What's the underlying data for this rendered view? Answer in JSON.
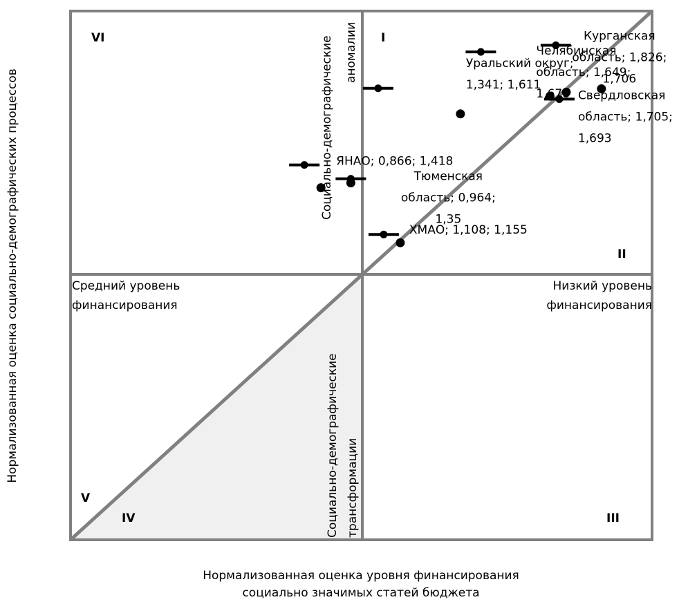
{
  "chart_data": {
    "type": "scatter",
    "xlabel": [
      "Нормализованная оценка уровня финансирования",
      "социально значимых статей бюджета"
    ],
    "ylabel": "Нормализованная оценка  социально-демографических процессов",
    "xlim": [
      0,
      2
    ],
    "ylim": [
      0,
      2
    ],
    "grid": false,
    "points": [
      {
        "label": [
          "ЯНАО; 0,866; 1,418"
        ],
        "x": 0.866,
        "y": 1.418
      },
      {
        "label": [
          "ХМАО; 1,108; 1,155"
        ],
        "x": 1.108,
        "y": 1.155
      },
      {
        "label": [
          "Тюменская",
          "область; 0,964;",
          "1,35"
        ],
        "x": 0.964,
        "y": 1.35
      },
      {
        "label": [
          "Уральский округ;",
          "1,341; 1,611"
        ],
        "x": 1.341,
        "y": 1.611
      },
      {
        "label": [
          "Челябинская",
          "область; 1,649;",
          "1,678"
        ],
        "x": 1.649,
        "y": 1.678
      },
      {
        "label": [
          "Свердловская",
          "область; 1,705;",
          "1,693"
        ],
        "x": 1.705,
        "y": 1.693
      },
      {
        "label": [
          "Курганская",
          "область; 1,826;",
          "1,706"
        ],
        "x": 1.826,
        "y": 1.706
      }
    ],
    "quadrant_labels": [
      "I",
      "II",
      "III",
      "IV",
      "V",
      "VI"
    ],
    "annotations": {
      "anomalies": [
        "Социально-демографические",
        "аномалии"
      ],
      "transformations": [
        "Социально-демографические",
        "трансформации"
      ],
      "mid_funding": [
        "Средний уровень",
        "финансирования"
      ],
      "low_funding": [
        "Низкий уровень",
        "финансирования"
      ]
    },
    "colors": {
      "frame": "#808080",
      "marker": "#000000",
      "shaded": "#f0f0f0"
    }
  }
}
